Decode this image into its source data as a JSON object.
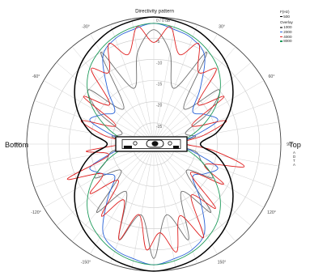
{
  "chart_data": {
    "type": "polar-line",
    "title": "Directivity pattern",
    "radial_axis": {
      "unit": "dB",
      "range": [
        -30,
        0
      ],
      "ticks": [
        {
          "value": 0,
          "label": "0 / 0 dB"
        },
        {
          "value": -5,
          "label": "-5"
        },
        {
          "value": -10,
          "label": "-10"
        },
        {
          "value": -15,
          "label": "-15"
        },
        {
          "value": -20,
          "label": "-20"
        },
        {
          "value": -25,
          "label": "-25"
        }
      ]
    },
    "angular_axis": {
      "unit": "deg",
      "zero_direction": "top",
      "direction": "clockwise",
      "ticks": [
        {
          "angle": 0,
          "label": ""
        },
        {
          "angle": 30,
          "label": "30°"
        },
        {
          "angle": 60,
          "label": "60°"
        },
        {
          "angle": 90,
          "label": "90°"
        },
        {
          "angle": 120,
          "label": "120°"
        },
        {
          "angle": 150,
          "label": "150°"
        },
        {
          "angle": 180,
          "label": "180°"
        },
        {
          "angle": -150,
          "label": "-150°"
        },
        {
          "angle": -120,
          "label": "-120°"
        },
        {
          "angle": -90,
          "label": "-90°"
        },
        {
          "angle": -60,
          "label": "-60°"
        },
        {
          "angle": -30,
          "label": "-30°"
        }
      ]
    },
    "side_labels": {
      "left": "Bottom",
      "right": "Top"
    },
    "side_note": "A D T A",
    "legend": {
      "title": "F(Hz)",
      "subtitle": "Overlay",
      "placement": "top-right"
    },
    "series": [
      {
        "name": "500",
        "color": "#000000",
        "group": "main",
        "angles": [
          0,
          10,
          20,
          30,
          40,
          50,
          60,
          70,
          80,
          90,
          100,
          110,
          120,
          130,
          140,
          150,
          160,
          170,
          180,
          190,
          200,
          210,
          220,
          230,
          240,
          250,
          260,
          270,
          280,
          290,
          300,
          310,
          320,
          330,
          340,
          350
        ],
        "values": [
          0,
          -0.5,
          -1.2,
          -2.5,
          -4,
          -6,
          -8.5,
          -11.5,
          -15,
          -19,
          -15,
          -11.5,
          -8.5,
          -6,
          -4,
          -2.5,
          -1.2,
          -0.5,
          0,
          -0.5,
          -1.2,
          -2.5,
          -4,
          -6,
          -8.5,
          -11.5,
          -15,
          -19,
          -15,
          -11.5,
          -8.5,
          -6,
          -4,
          -2.5,
          -1.2,
          -0.5
        ]
      },
      {
        "name": "1000",
        "color": "#6e6e6e",
        "group": "overlay",
        "angles": [
          0,
          10,
          20,
          30,
          40,
          50,
          60,
          70,
          80,
          90,
          100,
          110,
          120,
          130,
          140,
          150,
          160,
          170,
          180,
          190,
          200,
          210,
          220,
          230,
          240,
          250,
          260,
          270,
          280,
          290,
          300,
          310,
          320,
          330,
          340,
          350
        ],
        "values": [
          -3,
          -8,
          -16,
          -5,
          -19,
          -10,
          -15,
          -22,
          -20,
          -25,
          -20,
          -18,
          -14,
          -20,
          -9,
          -17,
          -6,
          -13,
          -3,
          -13,
          -6,
          -17,
          -9,
          -20,
          -14,
          -18,
          -20,
          -25,
          -20,
          -22,
          -15,
          -10,
          -19,
          -5,
          -16,
          -8
        ]
      },
      {
        "name": "2000",
        "color": "#2a63d8",
        "group": "overlay",
        "angles": [
          0,
          10,
          20,
          30,
          40,
          50,
          60,
          70,
          80,
          90,
          100,
          110,
          120,
          130,
          140,
          150,
          160,
          170,
          180,
          190,
          200,
          210,
          220,
          230,
          240,
          250,
          260,
          270,
          280,
          290,
          300,
          310,
          320,
          330,
          340,
          350
        ],
        "values": [
          -1.5,
          -2.5,
          -3.5,
          -6,
          -13,
          -18,
          -16,
          -14,
          -21,
          -25,
          -21,
          -14,
          -16,
          -18,
          -13,
          -6,
          -3.5,
          -2.5,
          -1.5,
          -2.5,
          -3.5,
          -6,
          -13,
          -18,
          -16,
          -14,
          -21,
          -25,
          -21,
          -14,
          -16,
          -18,
          -13,
          -6,
          -3.5,
          -2.5
        ]
      },
      {
        "name": "4000",
        "color": "#e02020",
        "group": "overlay",
        "angles": [
          0,
          8,
          16,
          24,
          32,
          40,
          48,
          56,
          64,
          72,
          80,
          88,
          96,
          104,
          112,
          120,
          128,
          136,
          144,
          152,
          160,
          168,
          176,
          184,
          192,
          200,
          208,
          216,
          224,
          232,
          240,
          248,
          256,
          264,
          272,
          280,
          288,
          296,
          304,
          312,
          320,
          328,
          336,
          344,
          352
        ],
        "values": [
          -6,
          -2,
          -8,
          -4,
          -10,
          -7,
          -16,
          -10,
          -20,
          -12,
          -18,
          -23,
          -16,
          -8,
          -17,
          -11,
          -19,
          -9,
          -15,
          -5,
          -12,
          -4,
          -9,
          -5,
          -13,
          -6,
          -15,
          -9,
          -18,
          -11,
          -16,
          -8,
          -19,
          -14,
          -23,
          -18,
          -12,
          -20,
          -10,
          -16,
          -7,
          -10,
          -4,
          -8,
          -2
        ]
      },
      {
        "name": "8000",
        "color": "#1f9a5b",
        "group": "overlay",
        "angles": [
          0,
          10,
          20,
          30,
          40,
          50,
          60,
          70,
          80,
          90,
          100,
          110,
          120,
          130,
          140,
          150,
          160,
          170,
          180,
          190,
          200,
          210,
          220,
          230,
          240,
          250,
          260,
          270,
          280,
          290,
          300,
          310,
          320,
          330,
          340,
          350
        ],
        "values": [
          -1.5,
          -2,
          -3,
          -4.5,
          -6.5,
          -9.5,
          -13.5,
          -18,
          -22,
          -25,
          -22,
          -18,
          -13.5,
          -9.5,
          -6.5,
          -4.5,
          -3,
          -2,
          -1.5,
          -2,
          -3,
          -4.5,
          -6.5,
          -9.5,
          -13.5,
          -18,
          -22,
          -25,
          -22,
          -18,
          -13.5,
          -9.5,
          -6.5,
          -4.5,
          -3,
          -2
        ]
      }
    ]
  }
}
